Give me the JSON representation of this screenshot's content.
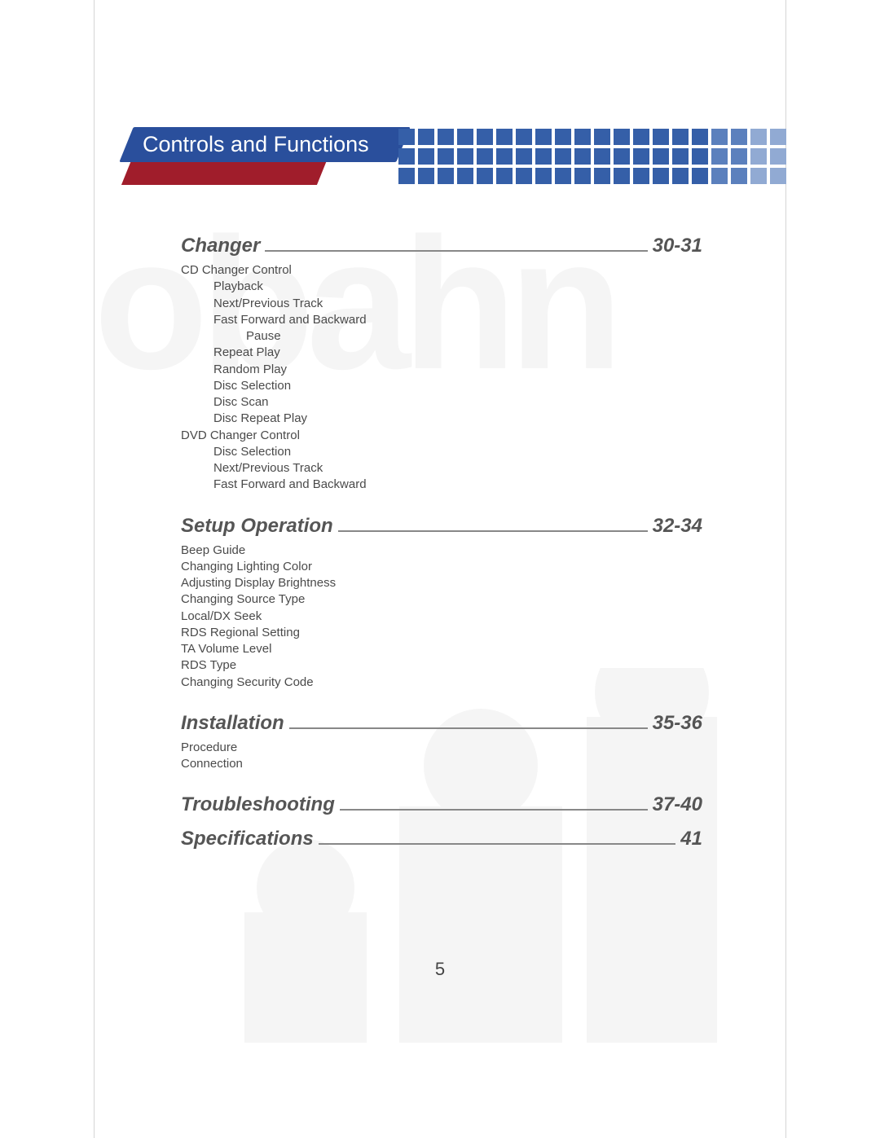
{
  "header": {
    "title": "Controls and Functions",
    "redColor": "#a01d2b",
    "blueColor": "#2a4f9c",
    "dotGrid": {
      "cols": 20,
      "rows": 3,
      "blueShades": [
        "#355fa8",
        "#5b80bd",
        "#91aad3"
      ]
    }
  },
  "sections": [
    {
      "title": "Changer",
      "page": "30-31",
      "items": [
        {
          "text": "CD Changer Control",
          "level": 0
        },
        {
          "text": "Playback",
          "level": 1
        },
        {
          "text": "Next/Previous Track",
          "level": 1
        },
        {
          "text": "Fast Forward and Backward",
          "level": 1
        },
        {
          "text": "Pause",
          "level": 2
        },
        {
          "text": "Repeat Play",
          "level": 1
        },
        {
          "text": "Random Play",
          "level": 1
        },
        {
          "text": "Disc Selection",
          "level": 1
        },
        {
          "text": "Disc Scan",
          "level": 1
        },
        {
          "text": "Disc Repeat Play",
          "level": 1
        },
        {
          "text": "DVD Changer Control",
          "level": 0
        },
        {
          "text": "Disc  Selection",
          "level": 1
        },
        {
          "text": "Next/Previous Track",
          "level": 1
        },
        {
          "text": "Fast Forward and Backward",
          "level": 1
        }
      ]
    },
    {
      "title": "Setup Operation",
      "page": "32-34",
      "items": [
        {
          "text": "Beep Guide",
          "level": 0
        },
        {
          "text": "Changing Lighting Color",
          "level": 0
        },
        {
          "text": "Adjusting Display Brightness",
          "level": 0
        },
        {
          "text": "Changing Source Type",
          "level": 0
        },
        {
          "text": "Local/DX Seek",
          "level": 0
        },
        {
          "text": "RDS Regional Setting",
          "level": 0
        },
        {
          "text": "TA Volume Level",
          "level": 0
        },
        {
          "text": "RDS Type",
          "level": 0
        },
        {
          "text": "Changing Security Code",
          "level": 0
        }
      ]
    },
    {
      "title": "Installation",
      "page": "35-36",
      "items": [
        {
          "text": "Procedure",
          "level": 0
        },
        {
          "text": "Connection",
          "level": 0
        }
      ]
    },
    {
      "title": "Troubleshooting",
      "page": "37-40",
      "items": []
    },
    {
      "title": "Specifications",
      "page": "41",
      "items": []
    }
  ],
  "pageNumber": "5"
}
